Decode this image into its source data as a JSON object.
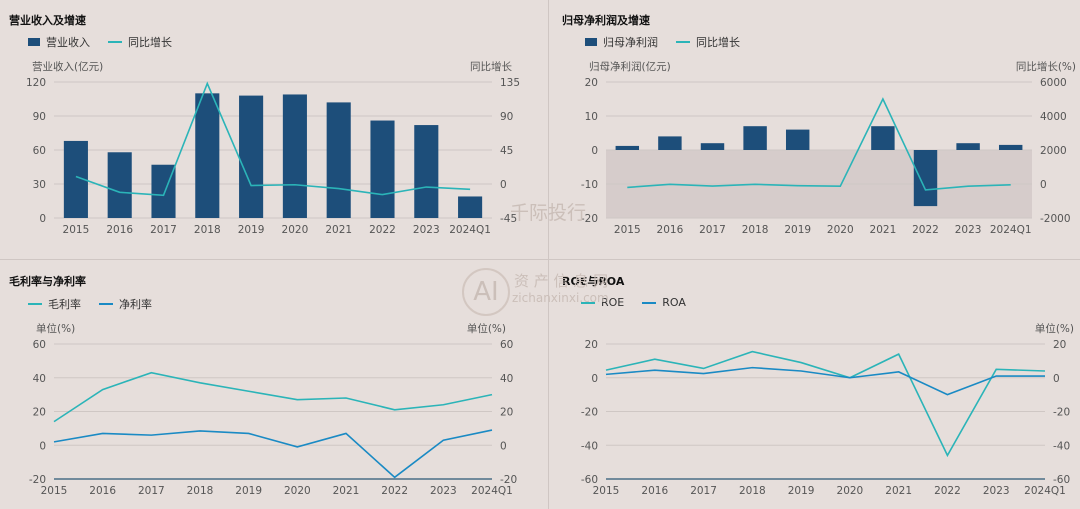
{
  "colors": {
    "bar": "#1d4e7a",
    "line_teal": "#2bb4b8",
    "line_blue": "#1a8ac4",
    "grid": "#cfc7c4",
    "neg_fill": "#d6cccb"
  },
  "watermark": {
    "text_main": "千际投行",
    "text_sub1": "资 产 信 息 网",
    "text_sub2": "zichanxinxi.com",
    "logo_text": "AI"
  },
  "chart_data": [
    {
      "type": "bar+line",
      "title": "营业收入及增速",
      "categories": [
        "2015",
        "2016",
        "2017",
        "2018",
        "2019",
        "2020",
        "2021",
        "2022",
        "2023",
        "2024Q1"
      ],
      "series": [
        {
          "name": "营业收入",
          "kind": "bar",
          "axis": "left",
          "values": [
            68,
            58,
            47,
            110,
            108,
            109,
            102,
            86,
            82,
            19
          ]
        },
        {
          "name": "同比增长",
          "kind": "line",
          "axis": "right",
          "values": [
            10,
            -11,
            -15,
            133,
            -2,
            -1,
            -6,
            -14,
            -4,
            -7
          ]
        }
      ],
      "left_axis": {
        "label": "营业收入(亿元)",
        "min": 0,
        "max": 120,
        "ticks": [
          "0",
          "30",
          "60",
          "90",
          "120"
        ]
      },
      "right_axis": {
        "label": "同比增长",
        "min": -45,
        "max": 135,
        "ticks": [
          "-45",
          "0",
          "45",
          "90",
          "135"
        ]
      }
    },
    {
      "type": "bar+line",
      "title": "归母净利润及增速",
      "categories": [
        "2015",
        "2016",
        "2017",
        "2018",
        "2019",
        "2020",
        "2021",
        "2022",
        "2023",
        "2024Q1"
      ],
      "series": [
        {
          "name": "归母净利润",
          "kind": "bar",
          "axis": "left",
          "values": [
            1.2,
            4.0,
            2.0,
            7.0,
            6.0,
            0,
            7.0,
            -16.5,
            2.0,
            1.5
          ]
        },
        {
          "name": "同比增长",
          "kind": "line",
          "axis": "right",
          "values": [
            -200,
            -20,
            -120,
            -20,
            -100,
            -130,
            5000,
            -350,
            -130,
            -50
          ]
        }
      ],
      "left_axis": {
        "label": "归母净利润(亿元)",
        "min": -20,
        "max": 20,
        "ticks": [
          "-20",
          "-10",
          "0",
          "10",
          "20"
        ]
      },
      "right_axis": {
        "label": "同比增长(%)",
        "min": -2000,
        "max": 6000,
        "ticks": [
          "-2000",
          "0",
          "2000",
          "4000",
          "6000"
        ]
      }
    },
    {
      "type": "line",
      "title": "毛利率与净利率",
      "categories": [
        "2015",
        "2016",
        "2017",
        "2018",
        "2019",
        "2020",
        "2021",
        "2022",
        "2023",
        "2024Q1"
      ],
      "series": [
        {
          "name": "毛利率",
          "color_key": "line_teal",
          "values": [
            14,
            33,
            43,
            37,
            32,
            27,
            28,
            21,
            24,
            30
          ]
        },
        {
          "name": "净利率",
          "color_key": "line_blue",
          "values": [
            2,
            7,
            6,
            8.5,
            7,
            -1,
            7,
            -19,
            3,
            9
          ]
        }
      ],
      "axis_label_left": "单位(%)",
      "axis_label_right": "单位(%)",
      "left_ticks": [
        "-20",
        "0",
        "20",
        "40",
        "60"
      ],
      "right_ticks": [
        "-20",
        "0",
        "20",
        "40",
        "60"
      ],
      "min": -20,
      "max": 60
    },
    {
      "type": "line",
      "title": "ROE与ROA",
      "categories": [
        "2015",
        "2016",
        "2017",
        "2018",
        "2019",
        "2020",
        "2021",
        "2022",
        "2023",
        "2024Q1"
      ],
      "series": [
        {
          "name": "ROE",
          "color_key": "line_teal",
          "values": [
            4.5,
            11,
            5.5,
            15.5,
            9,
            0,
            14,
            -46,
            5,
            4
          ]
        },
        {
          "name": "ROA",
          "color_key": "line_blue",
          "values": [
            2,
            4.5,
            2.5,
            6,
            4,
            0,
            3.5,
            -10,
            1,
            1
          ]
        }
      ],
      "axis_label_right": "单位(%)",
      "left_ticks": [
        "-60",
        "-40",
        "-20",
        "0",
        "20"
      ],
      "right_ticks": [
        "-60",
        "-40",
        "-20",
        "0",
        "20"
      ],
      "min": -60,
      "max": 20
    }
  ]
}
